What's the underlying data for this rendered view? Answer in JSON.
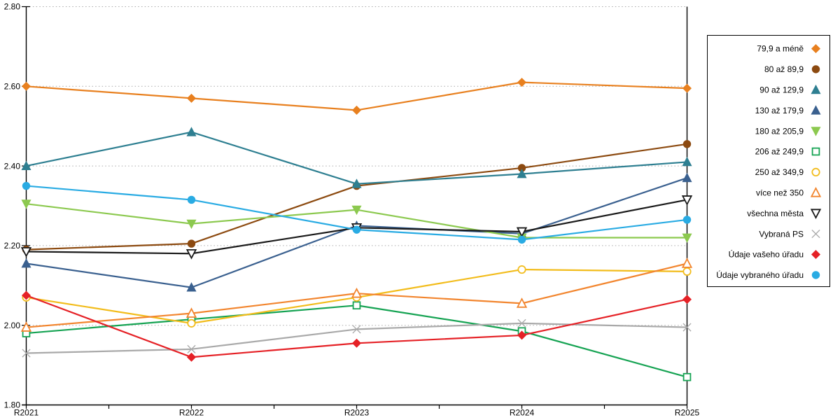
{
  "chart_data": {
    "type": "line",
    "title": "",
    "xlabel": "",
    "ylabel": "",
    "categories": [
      "R2021",
      "R2022",
      "R2023",
      "R2024",
      "R2025"
    ],
    "ylim": [
      1.8,
      2.8
    ],
    "ytick_step": 0.2,
    "ytick_labels": [
      "1.80",
      "2.00",
      "2.20",
      "2.40",
      "2.60",
      "2.80"
    ],
    "grid": "horizontal-dotted",
    "legend_position": "right",
    "grid_color": "#aaaaaa",
    "axis_color": "#000000",
    "series": [
      {
        "name": "79,9 a méně",
        "color": "#e8801f",
        "marker": "diamond",
        "open": false,
        "values": [
          2.6,
          2.57,
          2.54,
          2.61,
          2.595
        ]
      },
      {
        "name": "80 až 89,9",
        "color": "#8c4a10",
        "marker": "circle",
        "open": false,
        "values": [
          2.19,
          2.205,
          2.35,
          2.395,
          2.455
        ]
      },
      {
        "name": "90 až 129,9",
        "color": "#2e7f91",
        "marker": "triangle-up",
        "open": false,
        "values": [
          2.4,
          2.485,
          2.355,
          2.38,
          2.41
        ]
      },
      {
        "name": "130 až 179,9",
        "color": "#3a608f",
        "marker": "triangle-up",
        "open": false,
        "values": [
          2.155,
          2.095,
          2.25,
          2.23,
          2.37
        ]
      },
      {
        "name": "180 až 205,9",
        "color": "#8cc94f",
        "marker": "triangle-down",
        "open": false,
        "values": [
          2.305,
          2.255,
          2.29,
          2.22,
          2.22
        ]
      },
      {
        "name": "206 až 249,9",
        "color": "#16a353",
        "marker": "square",
        "open": true,
        "values": [
          1.98,
          2.015,
          2.05,
          1.985,
          1.87
        ]
      },
      {
        "name": "250 až 349,9",
        "color": "#f2bc1b",
        "marker": "circle",
        "open": true,
        "values": [
          2.07,
          2.005,
          2.07,
          2.14,
          2.135
        ]
      },
      {
        "name": "více než 350",
        "color": "#f2852e",
        "marker": "triangle-up",
        "open": true,
        "values": [
          1.995,
          2.03,
          2.08,
          2.055,
          2.155
        ]
      },
      {
        "name": "všechna města",
        "color": "#1a1a1a",
        "marker": "triangle-down",
        "open": true,
        "values": [
          2.185,
          2.18,
          2.245,
          2.235,
          2.315
        ]
      },
      {
        "name": "Vybraná PS",
        "color": "#a9a9a9",
        "marker": "x",
        "open": true,
        "values": [
          1.93,
          1.94,
          1.99,
          2.005,
          1.995
        ]
      },
      {
        "name": "Údaje vašeho úřadu",
        "color": "#e52126",
        "marker": "diamond",
        "open": false,
        "values": [
          2.075,
          1.92,
          1.955,
          1.975,
          2.065
        ]
      },
      {
        "name": "Údaje vybraného úřadu",
        "color": "#29abe3",
        "marker": "circle",
        "open": false,
        "values": [
          2.35,
          2.315,
          2.24,
          2.215,
          2.265
        ]
      }
    ]
  }
}
